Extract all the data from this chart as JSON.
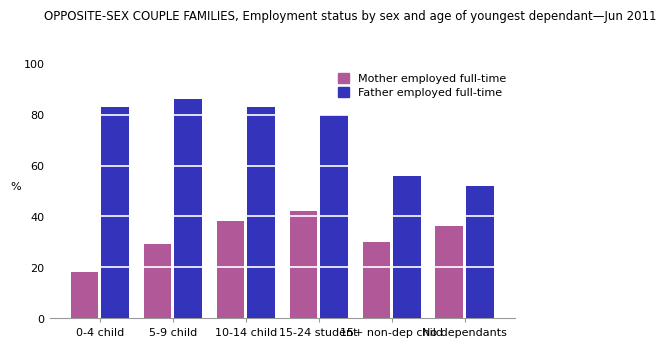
{
  "title": "OPPOSITE-SEX COUPLE FAMILIES, Employment status by sex and age of youngest dependant—Jun 2011",
  "categories": [
    "0-4 child",
    "5-9 child",
    "10-14 child",
    "15-24 student",
    "15+ non-dep child",
    "No dependants"
  ],
  "mother_values": [
    18,
    29,
    38,
    42,
    30,
    36
  ],
  "father_values": [
    83,
    86,
    83,
    80,
    56,
    52
  ],
  "mother_color": "#B05898",
  "father_color": "#3333BB",
  "ylabel": "%",
  "ylim": [
    0,
    100
  ],
  "yticks": [
    0,
    20,
    40,
    60,
    80,
    100
  ],
  "grid_color": "#FFFFFF",
  "bg_color": "#FFFFFF",
  "plot_bg_color": "#FFFFFF",
  "legend_mother": "Mother employed full-time",
  "legend_father": "Father employed full-time",
  "bar_width": 0.38,
  "bar_gap": 0.04,
  "title_fontsize": 8.5,
  "axis_fontsize": 8,
  "legend_fontsize": 8
}
